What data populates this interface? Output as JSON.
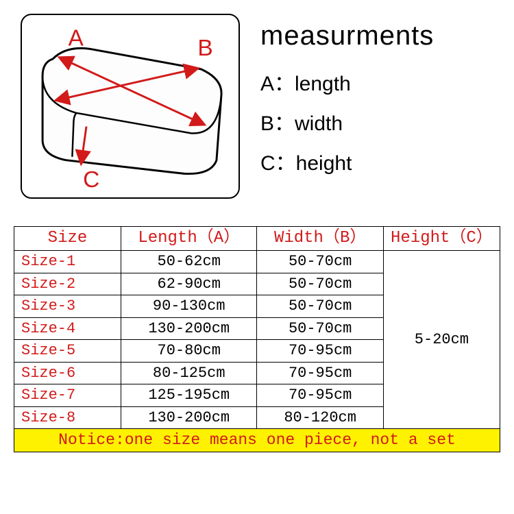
{
  "legend": {
    "title": "measurments",
    "a": "A：length",
    "b": "B：width",
    "c": "C：height"
  },
  "diagram": {
    "label_a": "A",
    "label_b": "B",
    "label_c": "C",
    "outline_color": "#000000",
    "arrow_color": "#d21a1a",
    "label_color": "#d21a1a",
    "fill_color": "#fdfdfd"
  },
  "table": {
    "headers": {
      "size": "Size",
      "length": "Length（A）",
      "width": "Width（B）",
      "height": "Height（C）"
    },
    "height_value": "5-20cm",
    "rows": [
      {
        "size": "Size-1",
        "length": "50-62cm",
        "width": "50-70cm"
      },
      {
        "size": "Size-2",
        "length": "62-90cm",
        "width": "50-70cm"
      },
      {
        "size": "Size-3",
        "length": "90-130cm",
        "width": "50-70cm"
      },
      {
        "size": "Size-4",
        "length": "130-200cm",
        "width": "50-70cm"
      },
      {
        "size": "Size-5",
        "length": "70-80cm",
        "width": "70-95cm"
      },
      {
        "size": "Size-6",
        "length": "80-125cm",
        "width": "70-95cm"
      },
      {
        "size": "Size-7",
        "length": "125-195cm",
        "width": "70-95cm"
      },
      {
        "size": "Size-8",
        "length": "130-200cm",
        "width": "80-120cm"
      }
    ],
    "notice": "Notice:one size means one piece, not a set"
  },
  "colors": {
    "red": "#d21a1a",
    "yellow": "#fff200",
    "border": "#000000",
    "background": "#ffffff"
  }
}
